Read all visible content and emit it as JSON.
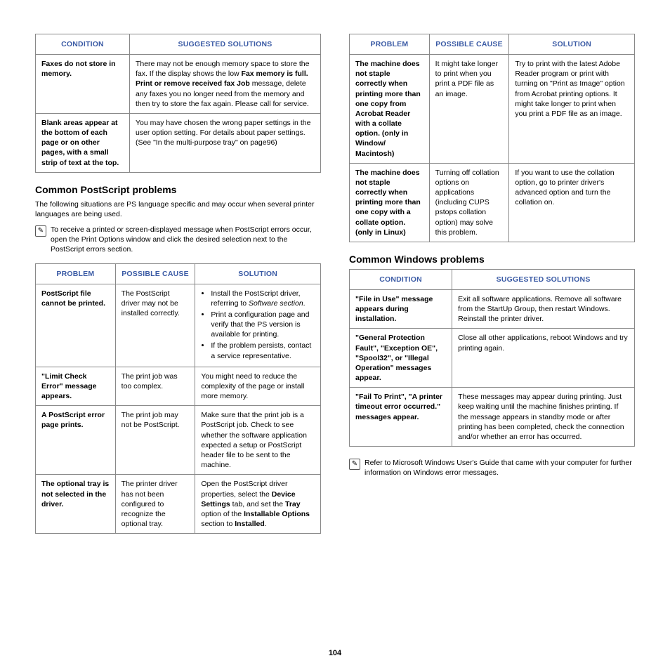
{
  "page_number": "104",
  "left": {
    "table1": {
      "headers": [
        "CONDITION",
        "SUGGESTED SOLUTIONS"
      ],
      "rows": [
        {
          "condition": "Faxes do not store in memory.",
          "solution_pre": "There may not be enough memory space to store the fax. If the display shows the low ",
          "solution_bold": "Fax memory is full. Print or remove received fax Job",
          "solution_post": " message, delete any faxes you no longer need from the memory and then try to store the fax again. Please call for service."
        },
        {
          "condition": "Blank areas appear at the bottom of each page or on other pages, with a small strip of text at the top.",
          "solution": "You may have chosen the wrong paper settings in the user option setting. For details about paper settings. (See \"In the multi-purpose tray\" on page96)"
        }
      ]
    },
    "heading1": "Common PostScript problems",
    "intro1": "The following situations are PS language specific and may occur when several printer languages are being used.",
    "note1": "To receive a printed or screen-displayed message when PostScript errors occur, open the Print Options window and click the desired selection next to the PostScript errors section.",
    "table2": {
      "headers": [
        "PROBLEM",
        "POSSIBLE CAUSE",
        "SOLUTION"
      ],
      "rows": [
        {
          "problem": "PostScript file cannot be printed.",
          "cause": "The PostScript driver may not be installed correctly.",
          "solution_items": [
            {
              "pre": "Install the PostScript driver, referring to ",
              "em": "Software section",
              "post": "."
            },
            {
              "text": "Print a configuration page and verify that the PS version is available for printing."
            },
            {
              "text": "If the problem persists, contact a service representative."
            }
          ]
        },
        {
          "problem": "\"Limit Check Error\" message appears.",
          "cause": "The print job was too complex.",
          "solution": "You might need to reduce the complexity of the page or install more memory."
        },
        {
          "problem": "A PostScript error page prints.",
          "cause": "The print job may not be PostScript.",
          "solution": "Make sure that the print job is a PostScript job. Check to see whether the software application expected a setup or PostScript header file to be sent to the machine."
        },
        {
          "problem": "The optional tray is not selected in the driver.",
          "cause": "The printer driver has not been configured to recognize the optional tray.",
          "solution_pre": "Open the PostScript driver properties, select the ",
          "b1": "Device Settings",
          "mid1": " tab, and set the ",
          "b2": "Tray",
          "mid2": " option of the ",
          "b3": "Installable Options",
          "mid3": " section to ",
          "b4": "Installed",
          "post": "."
        }
      ]
    }
  },
  "right": {
    "table1": {
      "headers": [
        "PROBLEM",
        "POSSIBLE CAUSE",
        "SOLUTION"
      ],
      "rows": [
        {
          "problem": "The machine does not staple correctly when printing more than one copy from Acrobat Reader with a collate option. (only in Window/ Macintosh)",
          "cause": "It might take longer to print when you print a PDF file as an image.",
          "solution": "Try to print with the latest Adobe Reader program or print with turning on \"Print as Image\" option from Acrobat printing options. It might take longer to print when you print a PDF file as an image."
        },
        {
          "problem": "The machine does not staple correctly when printing more than one copy with a collate option. (only in Linux)",
          "cause": "Turning off collation options on applications (including CUPS pstops collation option) may solve this problem.",
          "solution": "If you want to use the collation option, go to printer driver's advanced option and turn the collation on."
        }
      ]
    },
    "heading1": "Common Windows problems",
    "table2": {
      "headers": [
        "CONDITION",
        "SUGGESTED SOLUTIONS"
      ],
      "rows": [
        {
          "condition": "\"File in Use\" message appears during installation.",
          "solution": "Exit all software applications. Remove all software from the StartUp Group, then restart Windows. Reinstall the printer driver."
        },
        {
          "condition": "\"General Protection Fault\", \"Exception OE\", \"Spool32\", or \"Illegal Operation\" messages appear.",
          "solution": "Close all other applications, reboot Windows and try printing again."
        },
        {
          "condition": "\"Fail To Print\", \"A printer timeout error occurred.\" messages appear.",
          "solution": "These messages may appear during printing. Just keep waiting until the machine finishes printing. If the message appears in standby mode or after printing has been completed, check the connection and/or whether an error has occurred."
        }
      ]
    },
    "note1": "Refer to Microsoft Windows User's Guide that came with your computer for further information on Windows error messages."
  }
}
